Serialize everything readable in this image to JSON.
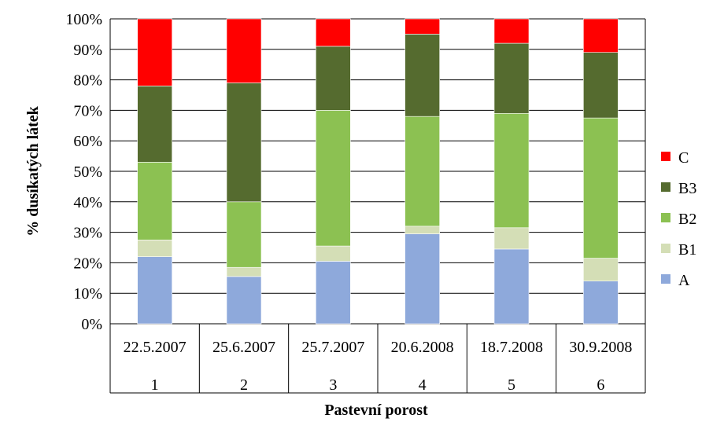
{
  "chart_data": {
    "type": "bar",
    "stacked": true,
    "percent_stacked": true,
    "categories": [
      {
        "date": "22.5.2007",
        "number": "1"
      },
      {
        "date": "25.6.2007",
        "number": "2"
      },
      {
        "date": "25.7.2007",
        "number": "3"
      },
      {
        "date": "20.6.2008",
        "number": "4"
      },
      {
        "date": "18.7.2008",
        "number": "5"
      },
      {
        "date": "30.9.2008",
        "number": "6"
      }
    ],
    "series": [
      {
        "name": "A",
        "color": "#8EA9DB",
        "values": [
          22,
          15.5,
          20.5,
          29.5,
          24.5,
          14
        ]
      },
      {
        "name": "B1",
        "color": "#D4DEB6",
        "values": [
          5.5,
          3,
          5,
          2.5,
          7,
          7.5
        ]
      },
      {
        "name": "B2",
        "color": "#8CC152",
        "values": [
          25.5,
          21.5,
          44.5,
          36,
          37.5,
          46
        ]
      },
      {
        "name": "B3",
        "color": "#556B2F",
        "values": [
          25,
          39,
          21,
          27,
          23,
          21.5
        ]
      },
      {
        "name": "C",
        "color": "#FF0000",
        "values": [
          22,
          21,
          9,
          5,
          8,
          11
        ]
      }
    ],
    "xlabel": "Pastevní porost",
    "ylabel": "% dusíkatých látek",
    "ylim": [
      0,
      100
    ],
    "yticks": [
      "0%",
      "10%",
      "20%",
      "30%",
      "40%",
      "50%",
      "60%",
      "70%",
      "80%",
      "90%",
      "100%"
    ],
    "grid": true,
    "legend_position": "right",
    "legend_order": [
      "C",
      "B3",
      "B2",
      "B1",
      "A"
    ]
  }
}
